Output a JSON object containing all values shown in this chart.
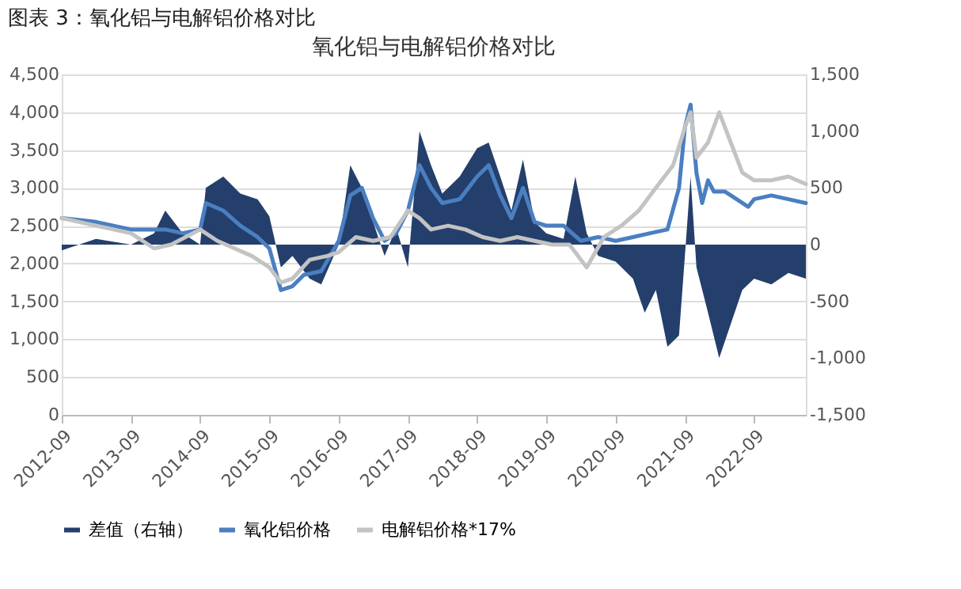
{
  "chart_data": {
    "type": "line",
    "title": "氧化铝与电解铝价格对比",
    "annotations": [
      "图表 3：氧化铝与电解铝价格对比"
    ],
    "series": [
      {
        "name": "差值（右轴）",
        "type": "area",
        "axis": "y2",
        "color": "#243f6b",
        "x": [
          "2012-09",
          "2013-03",
          "2013-09",
          "2014-01",
          "2014-03",
          "2014-06",
          "2014-09",
          "2014-10",
          "2015-01",
          "2015-04",
          "2015-07",
          "2015-09",
          "2015-11",
          "2016-01",
          "2016-04",
          "2016-06",
          "2016-09",
          "2016-11",
          "2017-01",
          "2017-03",
          "2017-05",
          "2017-07",
          "2017-09",
          "2017-11",
          "2018-01",
          "2018-03",
          "2018-06",
          "2018-09",
          "2018-11",
          "2019-01",
          "2019-03",
          "2019-05",
          "2019-07",
          "2019-09",
          "2019-12",
          "2020-02",
          "2020-04",
          "2020-06",
          "2020-09",
          "2020-12",
          "2021-02",
          "2021-04",
          "2021-06",
          "2021-08",
          "2021-09",
          "2021-10",
          "2021-11",
          "2022-01",
          "2022-03",
          "2022-05",
          "2022-07",
          "2022-09",
          "2022-12",
          "2023-03",
          "2023-06"
        ],
        "values": [
          -50,
          50,
          0,
          100,
          300,
          100,
          0,
          500,
          600,
          450,
          400,
          250,
          -200,
          -100,
          -300,
          -350,
          0,
          700,
          500,
          200,
          -100,
          150,
          -200,
          1000,
          700,
          450,
          600,
          850,
          900,
          600,
          300,
          750,
          200,
          100,
          50,
          600,
          100,
          -100,
          -150,
          -300,
          -600,
          -400,
          -900,
          -800,
          -100,
          600,
          -200,
          -600,
          -1000,
          -700,
          -400,
          -300,
          -350,
          -250,
          -300
        ]
      },
      {
        "name": "氧化铝价格",
        "color": "#4a7fc1",
        "x": [
          "2012-09",
          "2013-03",
          "2013-09",
          "2014-03",
          "2014-06",
          "2014-09",
          "2014-10",
          "2015-01",
          "2015-04",
          "2015-07",
          "2015-09",
          "2015-11",
          "2016-01",
          "2016-03",
          "2016-06",
          "2016-09",
          "2016-11",
          "2017-01",
          "2017-03",
          "2017-05",
          "2017-07",
          "2017-09",
          "2017-11",
          "2018-01",
          "2018-03",
          "2018-06",
          "2018-09",
          "2018-11",
          "2019-01",
          "2019-03",
          "2019-05",
          "2019-07",
          "2019-09",
          "2019-12",
          "2020-03",
          "2020-06",
          "2020-09",
          "2020-12",
          "2021-03",
          "2021-06",
          "2021-08",
          "2021-09",
          "2021-10",
          "2021-11",
          "2021-12",
          "2022-01",
          "2022-02",
          "2022-04",
          "2022-06",
          "2022-08",
          "2022-09",
          "2022-12",
          "2023-03",
          "2023-06"
        ],
        "values": [
          2600,
          2550,
          2450,
          2450,
          2400,
          2450,
          2800,
          2700,
          2500,
          2350,
          2200,
          1650,
          1700,
          1850,
          1900,
          2300,
          2900,
          3000,
          2600,
          2300,
          2400,
          2700,
          3300,
          3000,
          2800,
          2850,
          3150,
          3300,
          2900,
          2600,
          3000,
          2550,
          2500,
          2500,
          2300,
          2350,
          2300,
          2350,
          2400,
          2450,
          3000,
          3800,
          4100,
          3200,
          2800,
          3100,
          2950,
          2950,
          2850,
          2750,
          2850,
          2900,
          2850,
          2800
        ]
      },
      {
        "name": "电解铝价格*17%",
        "color": "#c3c3c3",
        "x": [
          "2012-09",
          "2013-03",
          "2013-09",
          "2014-01",
          "2014-04",
          "2014-09",
          "2014-12",
          "2015-03",
          "2015-06",
          "2015-09",
          "2015-11",
          "2016-01",
          "2016-04",
          "2016-07",
          "2016-09",
          "2016-12",
          "2017-03",
          "2017-06",
          "2017-09",
          "2017-11",
          "2018-01",
          "2018-04",
          "2018-07",
          "2018-10",
          "2019-01",
          "2019-04",
          "2019-07",
          "2019-10",
          "2020-01",
          "2020-04",
          "2020-07",
          "2020-10",
          "2021-01",
          "2021-04",
          "2021-07",
          "2021-09",
          "2021-10",
          "2021-11",
          "2022-01",
          "2022-03",
          "2022-05",
          "2022-07",
          "2022-09",
          "2022-12",
          "2023-03",
          "2023-06"
        ],
        "values": [
          2600,
          2500,
          2400,
          2200,
          2250,
          2450,
          2300,
          2200,
          2100,
          1950,
          1750,
          1800,
          2050,
          2100,
          2150,
          2350,
          2300,
          2350,
          2700,
          2600,
          2450,
          2500,
          2450,
          2350,
          2300,
          2350,
          2300,
          2250,
          2250,
          1950,
          2350,
          2500,
          2700,
          3000,
          3300,
          3800,
          4000,
          3400,
          3600,
          4000,
          3600,
          3200,
          3100,
          3100,
          3150,
          3050
        ]
      }
    ],
    "xlim": [
      "2012-09",
      "2023-06"
    ],
    "xticks": [
      "2012-09",
      "2013-09",
      "2014-09",
      "2015-09",
      "2016-09",
      "2017-09",
      "2018-09",
      "2019-09",
      "2020-09",
      "2021-09",
      "2022-09"
    ],
    "ylim": [
      0,
      4500
    ],
    "yticks": [
      0,
      500,
      {
        "value": 1000,
        "label": "1,000"
      },
      {
        "value": 1500,
        "label": "1,500"
      },
      {
        "value": 2000,
        "label": "2,000"
      },
      {
        "value": 2500,
        "label": "2,500"
      },
      {
        "value": 3000,
        "label": "3,000"
      },
      {
        "value": 3500,
        "label": "3,500"
      },
      {
        "value": 4000,
        "label": "4,000"
      },
      {
        "value": 4500,
        "label": "4,500"
      }
    ],
    "y2lim": [
      -1500,
      1500
    ],
    "y2ticks": [
      {
        "value": -1500,
        "label": "-1,500"
      },
      {
        "value": -1000,
        "label": "-1,000"
      },
      -500,
      0,
      500,
      {
        "value": 1000,
        "label": "1,000"
      },
      {
        "value": 1500,
        "label": "1,500"
      }
    ],
    "grid": "y",
    "legend": "bottom"
  }
}
